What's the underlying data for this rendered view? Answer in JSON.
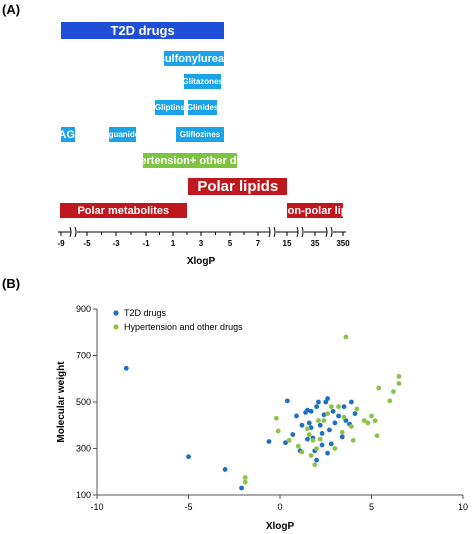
{
  "panel_a": {
    "label": "(A)",
    "colors": {
      "t2d": "#1f4fd8",
      "sub": "#1aa3e8",
      "green": "#7fc241",
      "red": "#c0161d"
    },
    "bars": [
      {
        "id": "t2d-drugs",
        "label": "T2D drugs",
        "color": "t2d",
        "x0": -9.0,
        "x1": 4.6,
        "row": 0,
        "size": "big"
      },
      {
        "id": "sulfonylureas",
        "label": "Sulfonylureas",
        "color": "sub",
        "x0": 0.3,
        "x1": 4.6,
        "row": 1,
        "size": "mid"
      },
      {
        "id": "glitazones",
        "label": "Glitazones",
        "color": "sub",
        "x0": 1.8,
        "x1": 4.4,
        "row": 2,
        "size": "small"
      },
      {
        "id": "gliptins",
        "label": "Gliptins",
        "color": "sub",
        "x0": -0.3,
        "x1": 1.8,
        "row": 3,
        "size": "small"
      },
      {
        "id": "glinides",
        "label": "Glinides",
        "color": "sub",
        "x0": 2.1,
        "x1": 4.1,
        "row": 3,
        "size": "small"
      },
      {
        "id": "agi",
        "label": "AGI",
        "color": "sub",
        "x0": -9.0,
        "x1": -6.8,
        "row": 4,
        "size": "mid"
      },
      {
        "id": "biguanides",
        "label": "Biguanides",
        "color": "sub",
        "x0": -3.5,
        "x1": -1.7,
        "row": 4,
        "size": "small"
      },
      {
        "id": "gliflozines",
        "label": "Gliflozines",
        "color": "sub",
        "x0": 1.2,
        "x1": 4.6,
        "row": 4,
        "size": "small"
      },
      {
        "id": "hypertension",
        "label": "Hypertension+ other drugs",
        "color": "green",
        "x0": -1.2,
        "x1": 5.5,
        "row": 5,
        "size": "mid"
      },
      {
        "id": "polar-lipids",
        "label": "Polar lipids",
        "color": "red",
        "x0": 2.1,
        "x1": 15.1,
        "row": 6,
        "size": "huge"
      },
      {
        "id": "polar-metabolites",
        "label": "Polar metabolites",
        "color": "red",
        "x0": -9.2,
        "x1": 2.0,
        "row": 7,
        "size": "mid"
      },
      {
        "id": "non-polar-lipids",
        "label": "Non-polar lip.",
        "color": "red",
        "x0": 15.2,
        "x1": 350,
        "row": 7,
        "size": "mid"
      }
    ],
    "axis": {
      "xlabel": "XlogP",
      "ticks": [
        "-9",
        "-5",
        "-3",
        "-1",
        "1",
        "3",
        "5",
        "7",
        "15",
        "35",
        "350"
      ],
      "tick_values": [
        -9,
        -5,
        -3,
        -1,
        1,
        3,
        5,
        7,
        15,
        35,
        350
      ]
    }
  },
  "chart_data": {
    "type": "scatter",
    "panel_label": "(B)",
    "xlabel": "XlogP",
    "ylabel": "Molecular weight",
    "xlim": [
      -10,
      10
    ],
    "ylim": [
      100,
      900
    ],
    "xticks": [
      -10,
      -5,
      0,
      5,
      10
    ],
    "yticks": [
      100,
      300,
      500,
      700,
      900
    ],
    "legend_position": "top-left",
    "series": [
      {
        "name": "T2D drugs",
        "color": "#1f6fc4",
        "points": [
          [
            -8.4,
            645
          ],
          [
            -5.0,
            265
          ],
          [
            -3.0,
            210
          ],
          [
            -2.1,
            130
          ],
          [
            -0.6,
            330
          ],
          [
            0.3,
            325
          ],
          [
            0.4,
            505
          ],
          [
            0.7,
            360
          ],
          [
            0.9,
            440
          ],
          [
            1.1,
            290
          ],
          [
            1.2,
            400
          ],
          [
            1.4,
            455
          ],
          [
            1.5,
            340
          ],
          [
            1.5,
            465
          ],
          [
            1.6,
            410
          ],
          [
            1.7,
            390
          ],
          [
            1.7,
            460
          ],
          [
            1.8,
            345
          ],
          [
            1.9,
            290
          ],
          [
            2.0,
            480
          ],
          [
            2.0,
            250
          ],
          [
            2.1,
            500
          ],
          [
            2.2,
            400
          ],
          [
            2.3,
            365
          ],
          [
            2.3,
            315
          ],
          [
            2.4,
            445
          ],
          [
            2.5,
            500
          ],
          [
            2.6,
            515
          ],
          [
            2.6,
            280
          ],
          [
            2.7,
            380
          ],
          [
            2.8,
            320
          ],
          [
            2.9,
            460
          ],
          [
            3.0,
            410
          ],
          [
            3.2,
            440
          ],
          [
            3.4,
            350
          ],
          [
            3.5,
            480
          ],
          [
            3.6,
            420
          ],
          [
            3.8,
            405
          ],
          [
            3.9,
            500
          ],
          [
            4.1,
            450
          ]
        ]
      },
      {
        "name": "Hypertension and other drugs",
        "color": "#8bc34a",
        "points": [
          [
            -1.9,
            175
          ],
          [
            -1.9,
            155
          ],
          [
            -0.2,
            430
          ],
          [
            -0.1,
            375
          ],
          [
            0.5,
            335
          ],
          [
            1.0,
            310
          ],
          [
            1.2,
            285
          ],
          [
            1.5,
            385
          ],
          [
            1.6,
            360
          ],
          [
            1.7,
            270
          ],
          [
            1.8,
            335
          ],
          [
            1.9,
            230
          ],
          [
            2.0,
            300
          ],
          [
            2.1,
            420
          ],
          [
            2.2,
            340
          ],
          [
            2.4,
            420
          ],
          [
            2.6,
            450
          ],
          [
            2.8,
            480
          ],
          [
            3.0,
            300
          ],
          [
            3.2,
            480
          ],
          [
            3.4,
            370
          ],
          [
            3.5,
            435
          ],
          [
            3.6,
            780
          ],
          [
            3.9,
            395
          ],
          [
            4.0,
            335
          ],
          [
            4.2,
            470
          ],
          [
            4.6,
            420
          ],
          [
            4.8,
            410
          ],
          [
            5.0,
            440
          ],
          [
            5.2,
            420
          ],
          [
            5.3,
            355
          ],
          [
            5.4,
            560
          ],
          [
            6.0,
            505
          ],
          [
            6.2,
            545
          ],
          [
            6.5,
            580
          ],
          [
            6.5,
            610
          ]
        ]
      }
    ]
  }
}
